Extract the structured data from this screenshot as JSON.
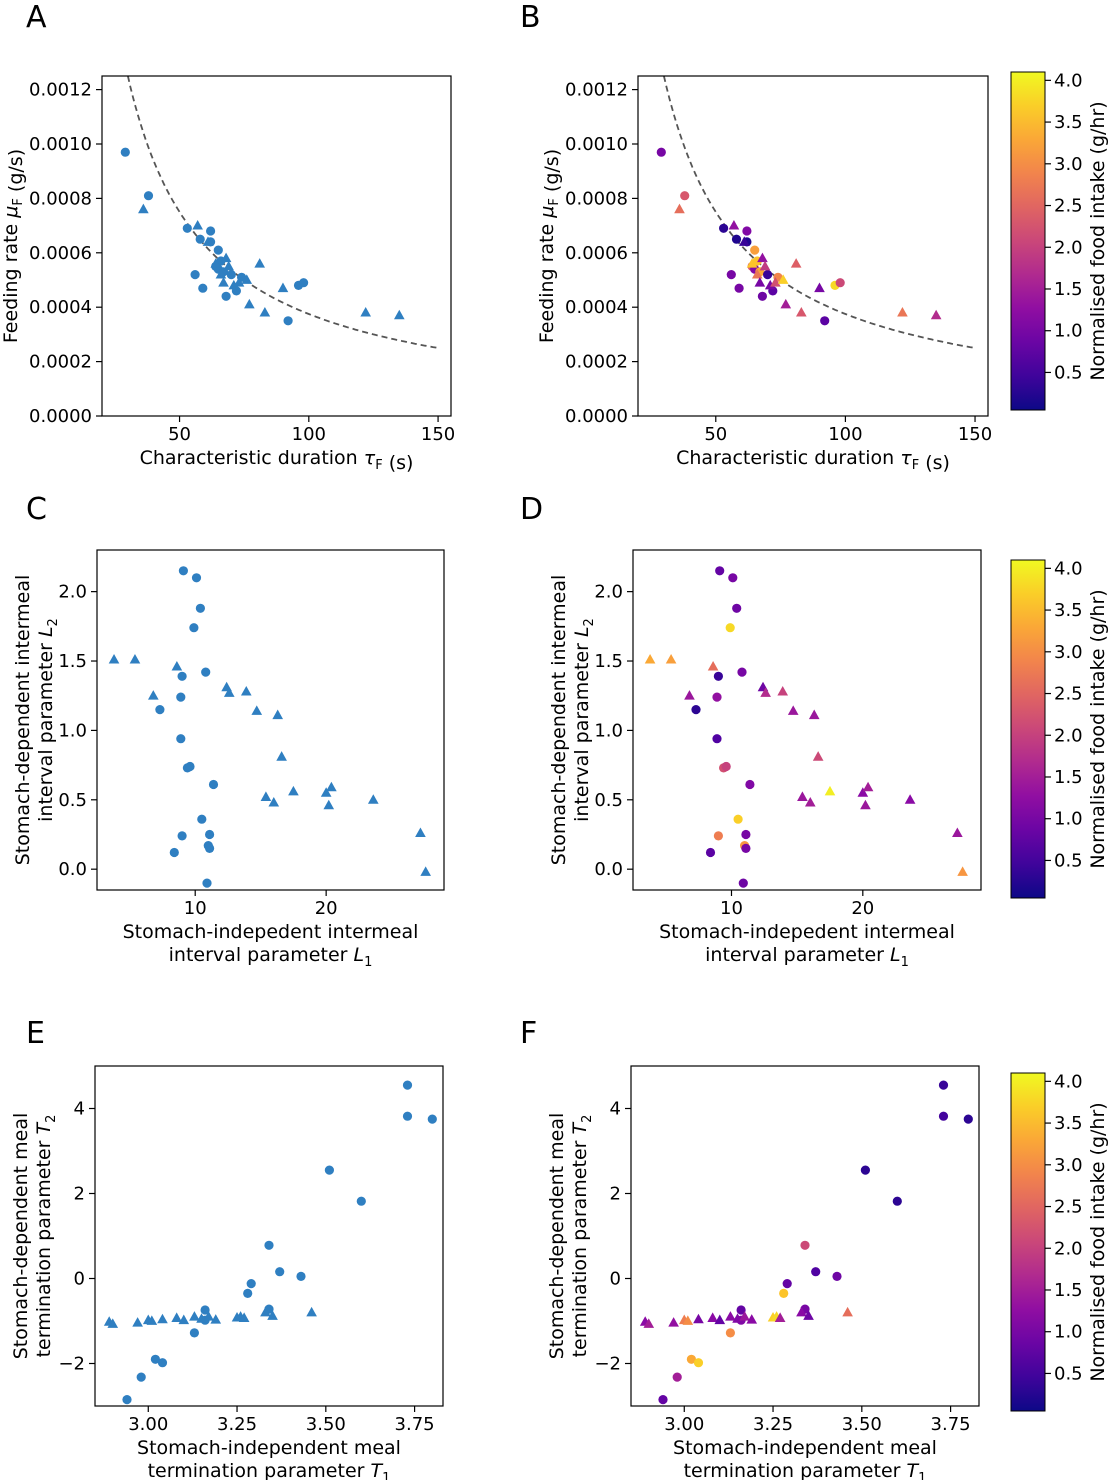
{
  "chart_data": [
    {
      "panel": "A",
      "type": "scatter",
      "xlabel": "Characteristic duration τ_F (s)",
      "ylabel": "Feeding rate μ_F (g/s)",
      "xlim": [
        20,
        155
      ],
      "ylim": [
        0,
        0.00125
      ],
      "xticks": [
        "50",
        "100",
        "150"
      ],
      "yticks": [
        "0.0000",
        "0.0002",
        "0.0004",
        "0.0006",
        "0.0008",
        "0.0010",
        "0.0012"
      ],
      "fit_curve": "dashed, μ = 0.0375 / τ",
      "series": [
        {
          "marker": "circle",
          "points": [
            [
              29,
              0.00097
            ],
            [
              38,
              0.00081
            ],
            [
              53,
              0.00069
            ],
            [
              56,
              0.00052
            ],
            [
              58,
              0.00065
            ],
            [
              59,
              0.00047
            ],
            [
              62,
              0.00068
            ],
            [
              62,
              0.00064
            ],
            [
              64,
              0.00055
            ],
            [
              65,
              0.00061
            ],
            [
              65,
              0.00054
            ],
            [
              66,
              0.00057
            ],
            [
              67,
              0.00053
            ],
            [
              68,
              0.00044
            ],
            [
              70,
              0.00052
            ],
            [
              72,
              0.00046
            ],
            [
              74,
              0.00051
            ],
            [
              92,
              0.00035
            ],
            [
              96,
              0.00048
            ],
            [
              98,
              0.00049
            ]
          ]
        },
        {
          "marker": "triangle",
          "points": [
            [
              36,
              0.00076
            ],
            [
              57,
              0.0007
            ],
            [
              61,
              0.00064
            ],
            [
              64,
              0.00056
            ],
            [
              66,
              0.00052
            ],
            [
              67,
              0.00049
            ],
            [
              68,
              0.00058
            ],
            [
              69,
              0.00055
            ],
            [
              71,
              0.00048
            ],
            [
              73,
              0.00049
            ],
            [
              76,
              0.0005
            ],
            [
              77,
              0.00041
            ],
            [
              81,
              0.00056
            ],
            [
              83,
              0.00038
            ],
            [
              90,
              0.00047
            ],
            [
              122,
              0.00038
            ],
            [
              135,
              0.00037
            ]
          ]
        }
      ]
    },
    {
      "panel": "C",
      "type": "scatter",
      "xlabel": "Stomach-indepedent intermeal interval parameter L_1",
      "ylabel": "Stomach-dependent intermeal interval parameter L_2",
      "xlim": [
        2.5,
        29
      ],
      "ylim": [
        -0.15,
        2.3
      ],
      "xticks": [
        "10",
        "20"
      ],
      "yticks": [
        "0.0",
        "0.5",
        "1.0",
        "1.5",
        "2.0"
      ],
      "series": [
        {
          "marker": "circle",
          "points": [
            [
              9.1,
              2.15
            ],
            [
              10.1,
              2.1
            ],
            [
              10.4,
              1.88
            ],
            [
              9.9,
              1.74
            ],
            [
              10.8,
              1.42
            ],
            [
              9.0,
              1.39
            ],
            [
              8.9,
              1.24
            ],
            [
              7.3,
              1.15
            ],
            [
              8.9,
              0.94
            ],
            [
              9.4,
              0.73
            ],
            [
              9.6,
              0.74
            ],
            [
              11.4,
              0.61
            ],
            [
              10.5,
              0.36
            ],
            [
              11.1,
              0.25
            ],
            [
              9.0,
              0.24
            ],
            [
              11.0,
              0.17
            ],
            [
              11.1,
              0.15
            ],
            [
              8.4,
              0.12
            ],
            [
              10.9,
              -0.1
            ]
          ]
        },
        {
          "marker": "triangle",
          "points": [
            [
              3.8,
              1.51
            ],
            [
              5.4,
              1.51
            ],
            [
              8.6,
              1.46
            ],
            [
              6.8,
              1.25
            ],
            [
              12.4,
              1.31
            ],
            [
              12.6,
              1.27
            ],
            [
              13.9,
              1.28
            ],
            [
              14.7,
              1.14
            ],
            [
              16.3,
              1.11
            ],
            [
              16.6,
              0.81
            ],
            [
              15.4,
              0.52
            ],
            [
              16.0,
              0.48
            ],
            [
              17.5,
              0.56
            ],
            [
              20.0,
              0.55
            ],
            [
              20.4,
              0.59
            ],
            [
              20.2,
              0.46
            ],
            [
              23.6,
              0.5
            ],
            [
              27.2,
              0.26
            ],
            [
              27.6,
              -0.02
            ]
          ]
        }
      ]
    },
    {
      "panel": "E",
      "type": "scatter",
      "xlabel": "Stomach-independent meal termination parameter T_1",
      "ylabel": "Stomach-dependent meal termination parameter T_2",
      "xlim": [
        2.85,
        3.83
      ],
      "ylim": [
        -3.0,
        5.0
      ],
      "xticks": [
        "3.00",
        "3.25",
        "3.50",
        "3.75"
      ],
      "yticks": [
        "−2",
        "0",
        "2",
        "4"
      ],
      "series": [
        {
          "marker": "circle",
          "points": [
            [
              3.73,
              4.55
            ],
            [
              3.73,
              3.82
            ],
            [
              3.8,
              3.75
            ],
            [
              3.51,
              2.55
            ],
            [
              3.6,
              1.82
            ],
            [
              3.34,
              0.78
            ],
            [
              3.37,
              0.16
            ],
            [
              3.43,
              0.05
            ],
            [
              3.29,
              -0.12
            ],
            [
              3.28,
              -0.35
            ],
            [
              3.34,
              -0.72
            ],
            [
              3.16,
              -0.74
            ],
            [
              3.16,
              -0.98
            ],
            [
              3.13,
              -1.28
            ],
            [
              3.02,
              -1.9
            ],
            [
              3.04,
              -1.98
            ],
            [
              2.98,
              -2.32
            ],
            [
              2.94,
              -2.85
            ]
          ]
        },
        {
          "marker": "triangle",
          "points": [
            [
              2.89,
              -1.02
            ],
            [
              2.9,
              -1.07
            ],
            [
              2.97,
              -1.04
            ],
            [
              3.0,
              -0.98
            ],
            [
              3.01,
              -1.0
            ],
            [
              3.04,
              -0.96
            ],
            [
              3.08,
              -0.93
            ],
            [
              3.1,
              -0.98
            ],
            [
              3.13,
              -0.9
            ],
            [
              3.15,
              -0.95
            ],
            [
              3.17,
              -0.9
            ],
            [
              3.19,
              -0.97
            ],
            [
              3.25,
              -0.92
            ],
            [
              3.26,
              -0.9
            ],
            [
              3.27,
              -0.93
            ],
            [
              3.33,
              -0.8
            ],
            [
              3.35,
              -0.88
            ],
            [
              3.46,
              -0.8
            ]
          ]
        }
      ]
    }
  ],
  "colorbar": {
    "label": "Normalised food intake (g/hr)",
    "range": [
      0.05,
      4.1
    ],
    "ticks": [
      "0.5",
      "1.0",
      "1.5",
      "2.0",
      "2.5",
      "3.0",
      "3.5",
      "4.0"
    ],
    "colormap": "plasma"
  },
  "colored_panels": {
    "B": {
      "circle": [
        1.0,
        2.3,
        0.3,
        1.0,
        0.2,
        1.0,
        1.1,
        0.2,
        2.3,
        3.2,
        1.1,
        3.6,
        3.3,
        0.9,
        0.4,
        0.7,
        2.9,
        0.7,
        3.8,
        2.1
      ],
      "triangle": [
        2.6,
        1.3,
        0.4,
        3.6,
        2.7,
        1.0,
        1.3,
        1.9,
        1.0,
        2.2,
        3.7,
        1.5,
        2.4,
        2.3,
        1.0,
        2.7,
        1.7
      ]
    },
    "D": {
      "circle": [
        0.8,
        1.0,
        0.9,
        3.8,
        1.0,
        0.4,
        1.3,
        0.3,
        0.6,
        2.2,
        2.0,
        1.1,
        3.7,
        1.0,
        2.8,
        3.1,
        1.0,
        0.7,
        0.9
      ],
      "triangle": [
        3.3,
        3.2,
        2.6,
        1.4,
        0.9,
        1.7,
        2.0,
        1.4,
        1.4,
        2.1,
        1.4,
        1.5,
        4.0,
        1.2,
        1.5,
        1.4,
        1.2,
        1.4,
        3.1
      ]
    },
    "F": {
      "circle": [
        0.4,
        0.5,
        0.3,
        0.3,
        0.3,
        2.1,
        0.6,
        0.9,
        0.8,
        3.6,
        1.0,
        0.8,
        1.1,
        3.0,
        3.3,
        3.7,
        1.5,
        0.8
      ],
      "triangle": [
        1.2,
        1.5,
        1.3,
        2.8,
        3.0,
        1.0,
        1.2,
        0.8,
        1.2,
        1.1,
        1.4,
        1.2,
        3.7,
        3.8,
        1.5,
        1.2,
        0.9,
        2.6
      ]
    }
  },
  "panel_labels": {
    "A": "A",
    "B": "B",
    "C": "C",
    "D": "D",
    "E": "E",
    "F": "F"
  }
}
